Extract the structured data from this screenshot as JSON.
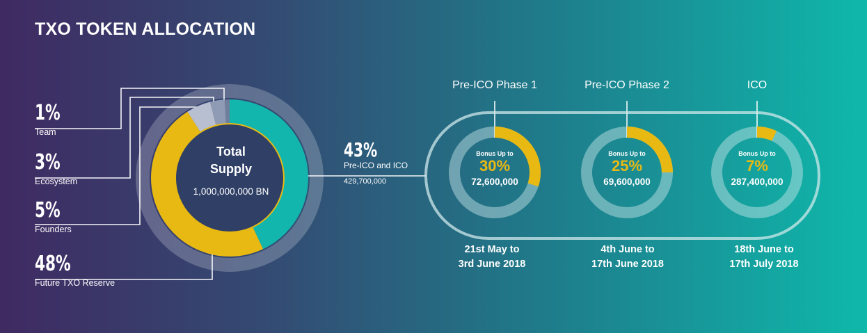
{
  "title": "TXO TOKEN ALLOCATION",
  "colors": {
    "teal": "#13b6ad",
    "yellow": "#e8b913",
    "gray1": "#b7bfd1",
    "gray2": "#8f9bb4",
    "gray3": "#6f7e9c",
    "center": "#2f3f66",
    "outer_ring": "#ffffff"
  },
  "chart_data": [
    {
      "type": "pie",
      "title": "Total Supply",
      "total_label": "1,000,000,000 BN",
      "slices": [
        {
          "label": "Pre-ICO and ICO",
          "value": 43,
          "color": "#13b6ad"
        },
        {
          "label": "Future TXO Reserve",
          "value": 48,
          "color": "#e8b913"
        },
        {
          "label": "Founders",
          "value": 5,
          "color": "#b7bfd1"
        },
        {
          "label": "Ecosystem",
          "value": 3,
          "color": "#8f9bb4"
        },
        {
          "label": "Team",
          "value": 1,
          "color": "#6f7e9c"
        }
      ]
    },
    {
      "type": "pie",
      "title": "Pre-ICO Phase 1",
      "slices": [
        {
          "label": "Bonus Up to",
          "value": 30
        }
      ],
      "amount": "72,600,000",
      "dates": [
        "21st May to",
        "3rd June 2018"
      ]
    },
    {
      "type": "pie",
      "title": "Pre-ICO Phase 2",
      "slices": [
        {
          "label": "Bonus Up to",
          "value": 25
        }
      ],
      "amount": "69,600,000",
      "dates": [
        "4th June to",
        "17th June 2018"
      ]
    },
    {
      "type": "pie",
      "title": "ICO",
      "slices": [
        {
          "label": "Bonus Up to",
          "value": 7
        }
      ],
      "amount": "287,400,000",
      "dates": [
        "18th June to",
        "17th July 2018"
      ]
    }
  ],
  "left_labels": [
    {
      "pct": "1%",
      "name": "Team"
    },
    {
      "pct": "3%",
      "name": "Ecosystem"
    },
    {
      "pct": "5%",
      "name": "Founders"
    },
    {
      "pct": "48%",
      "name": "Future TXO Reserve"
    }
  ],
  "center": {
    "line1": "Total",
    "line2": "Supply",
    "amount": "1,000,000,000 BN"
  },
  "callout": {
    "pct": "43%",
    "label": "Pre-ICO and ICO",
    "amount": "429,700,000"
  },
  "phases": [
    {
      "title": "Pre-ICO Phase 1",
      "bonus_label": "Bonus Up to",
      "bonus_pct": "30%",
      "amount": "72,600,000",
      "date1": "21st May to",
      "date2": "3rd June 2018"
    },
    {
      "title": "Pre-ICO Phase 2",
      "bonus_label": "Bonus Up to",
      "bonus_pct": "25%",
      "amount": "69,600,000",
      "date1": "4th June to",
      "date2": "17th June 2018"
    },
    {
      "title": "ICO",
      "bonus_label": "Bonus Up to",
      "bonus_pct": "7%",
      "amount": "287,400,000",
      "date1": "18th June to",
      "date2": "17th July 2018"
    }
  ]
}
